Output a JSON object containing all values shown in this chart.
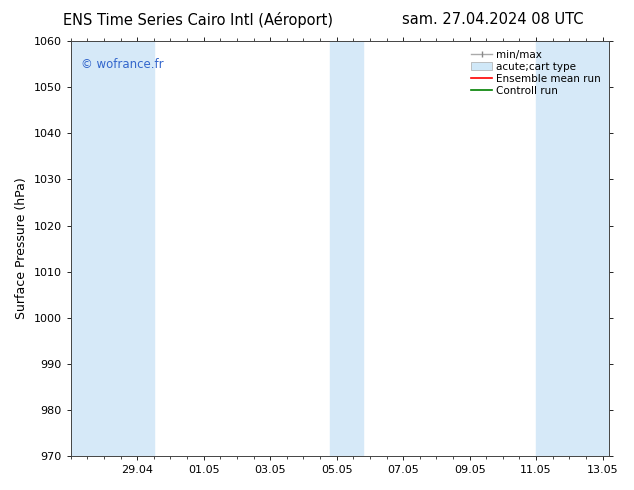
{
  "title_left": "ENS Time Series Cairo Intl (Aéroport)",
  "title_right": "sam. 27.04.2024 08 UTC",
  "ylabel": "Surface Pressure (hPa)",
  "ylim": [
    970,
    1060
  ],
  "yticks": [
    970,
    980,
    990,
    1000,
    1010,
    1020,
    1030,
    1040,
    1050,
    1060
  ],
  "x_labels": [
    "29.04",
    "01.05",
    "03.05",
    "05.05",
    "07.05",
    "09.05",
    "11.05",
    "13.05"
  ],
  "shaded_band_color": "#d6e9f8",
  "watermark": "© wofrance.fr",
  "watermark_color": "#3366cc",
  "background_color": "#ffffff",
  "plot_bg_color": "#ffffff",
  "title_fontsize": 10.5,
  "tick_fontsize": 8,
  "ylabel_fontsize": 9,
  "legend_fontsize": 7.5
}
